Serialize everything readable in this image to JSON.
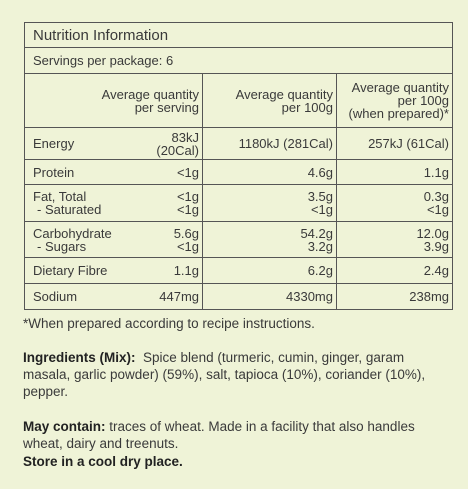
{
  "title": "Nutrition Information",
  "servings": "Servings per package: 6",
  "headers": [
    [
      "Average quantity",
      "per serving"
    ],
    [
      "Average quantity",
      "per 100g"
    ],
    [
      "Average quantity",
      "per 100g",
      "(when prepared)*"
    ]
  ],
  "rows": [
    {
      "label": [
        "Energy"
      ],
      "values": [
        [
          "83kJ (20Cal)"
        ],
        [
          "1180kJ (281Cal)"
        ],
        [
          "257kJ (61Cal)"
        ]
      ]
    },
    {
      "label": [
        "Protein"
      ],
      "values": [
        [
          "<1g"
        ],
        [
          "4.6g"
        ],
        [
          "1.1g"
        ]
      ]
    },
    {
      "label": [
        "Fat, Total",
        "- Saturated"
      ],
      "values": [
        [
          "<1g",
          "<1g"
        ],
        [
          "3.5g",
          "<1g"
        ],
        [
          "0.3g",
          "<1g"
        ]
      ]
    },
    {
      "label": [
        "Carbohydrate",
        "- Sugars"
      ],
      "values": [
        [
          "5.6g",
          "<1g"
        ],
        [
          "54.2g",
          "3.2g"
        ],
        [
          "12.0g",
          "3.9g"
        ]
      ]
    },
    {
      "label": [
        "Dietary Fibre"
      ],
      "values": [
        [
          "1.1g"
        ],
        [
          "6.2g"
        ],
        [
          "2.4g"
        ]
      ]
    },
    {
      "label": [
        "Sodium"
      ],
      "values": [
        [
          "447mg"
        ],
        [
          "4330mg"
        ],
        [
          "238mg"
        ]
      ]
    }
  ],
  "footnote": "*When prepared according to recipe instructions.",
  "ingredients": {
    "label": "Ingredients (Mix):",
    "text": "Spice blend (turmeric, cumin, ginger, garam masala, garlic powder) (59%), salt, tapioca (10%), coriander (10%), pepper."
  },
  "may_contain": {
    "label": "May contain:",
    "text": "traces of wheat. Made in a facility that also handles wheat, dairy and treenuts."
  },
  "storage": "Store in a cool dry place."
}
